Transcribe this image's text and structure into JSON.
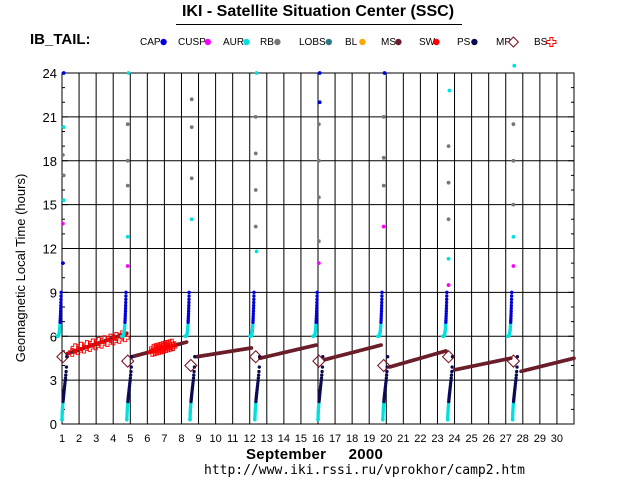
{
  "header": {
    "title": "IKI - Satellite Situation Center (SSC)",
    "dataset": "IB_TAIL:"
  },
  "footer": {
    "month": "September",
    "year": "2000",
    "url": "http://www.iki.rssi.ru/vprokhor/camp2.htm"
  },
  "colors": {
    "CAP": "#0000dd",
    "CUSP": "#ff00ff",
    "AUR": "#00e0e0",
    "RB": "#777777",
    "LOBS": "#2a7a8a",
    "BL": "#ffa500",
    "MS": "#6b1f2a",
    "SW": "#ff0000",
    "PS": "#0b0b55",
    "MP_BS": "#7a0a1a"
  },
  "chart_data": {
    "type": "scatter",
    "ylabel": "Geomagnetic  Local Time  (hours)",
    "xlabel": "September    2000",
    "ylim": [
      0,
      24
    ],
    "y_ticks": [
      0,
      3,
      6,
      9,
      12,
      15,
      18,
      21,
      24
    ],
    "xlim": [
      1,
      31
    ],
    "x_ticks": [
      1,
      2,
      3,
      4,
      5,
      6,
      7,
      8,
      9,
      10,
      11,
      12,
      13,
      14,
      15,
      16,
      17,
      18,
      19,
      20,
      21,
      22,
      23,
      24,
      25,
      26,
      27,
      28,
      29,
      30
    ],
    "grid": true,
    "legend_position": "top",
    "legend": [
      "CAP",
      "CUSP",
      "AUR",
      "RB",
      "LOBS",
      "BL",
      "MS",
      "SW",
      "PS",
      "MP",
      "BS"
    ],
    "orbit_starts": [
      1.0,
      4.8,
      8.5,
      12.3,
      16.0,
      19.8,
      23.6,
      27.4
    ],
    "magnetosheath_tracks": [
      {
        "x0": 1.3,
        "y0": 4.8,
        "x1": 4.8,
        "y1": 6.2
      },
      {
        "x0": 5.1,
        "y0": 4.6,
        "x1": 8.3,
        "y1": 5.6
      },
      {
        "x0": 8.9,
        "y0": 4.6,
        "x1": 12.1,
        "y1": 5.2
      },
      {
        "x0": 12.6,
        "y0": 4.5,
        "x1": 15.9,
        "y1": 5.4
      },
      {
        "x0": 16.4,
        "y0": 4.4,
        "x1": 19.7,
        "y1": 5.4
      },
      {
        "x0": 20.2,
        "y0": 3.9,
        "x1": 23.5,
        "y1": 5.0
      },
      {
        "x0": 24.0,
        "y0": 3.7,
        "x1": 27.3,
        "y1": 4.5
      },
      {
        "x0": 27.9,
        "y0": 3.6,
        "x1": 31.0,
        "y1": 4.5
      }
    ],
    "solar_wind_tracks": [
      {
        "x0": 1.6,
        "y0": 5.0,
        "x1": 4.7,
        "y1": 6.0
      },
      {
        "x0": 6.3,
        "y0": 5.0,
        "x1": 7.5,
        "y1": 5.4
      }
    ],
    "upper_scatter": [
      {
        "x": 1.1,
        "y": 24.0,
        "s": "CAP"
      },
      {
        "x": 1.1,
        "y": 20.3,
        "s": "AUR"
      },
      {
        "x": 1.05,
        "y": 18.4,
        "s": "RB"
      },
      {
        "x": 1.1,
        "y": 17.0,
        "s": "RB"
      },
      {
        "x": 1.1,
        "y": 15.3,
        "s": "AUR"
      },
      {
        "x": 1.05,
        "y": 13.7,
        "s": "CUSP"
      },
      {
        "x": 1.05,
        "y": 11.0,
        "s": "CAP"
      },
      {
        "x": 4.9,
        "y": 24.0,
        "s": "AUR"
      },
      {
        "x": 4.85,
        "y": 20.5,
        "s": "RB"
      },
      {
        "x": 4.85,
        "y": 18.0,
        "s": "RB"
      },
      {
        "x": 4.85,
        "y": 16.3,
        "s": "RB"
      },
      {
        "x": 4.85,
        "y": 12.8,
        "s": "AUR"
      },
      {
        "x": 4.85,
        "y": 10.8,
        "s": "CUSP"
      },
      {
        "x": 8.6,
        "y": 22.2,
        "s": "RB"
      },
      {
        "x": 8.6,
        "y": 20.3,
        "s": "RB"
      },
      {
        "x": 8.6,
        "y": 16.8,
        "s": "RB"
      },
      {
        "x": 8.6,
        "y": 14.0,
        "s": "AUR"
      },
      {
        "x": 12.4,
        "y": 24.0,
        "s": "AUR"
      },
      {
        "x": 12.35,
        "y": 21.0,
        "s": "RB"
      },
      {
        "x": 12.35,
        "y": 18.5,
        "s": "RB"
      },
      {
        "x": 12.35,
        "y": 16.0,
        "s": "RB"
      },
      {
        "x": 12.35,
        "y": 13.5,
        "s": "RB"
      },
      {
        "x": 12.4,
        "y": 11.8,
        "s": "AUR"
      },
      {
        "x": 16.1,
        "y": 24.0,
        "s": "CAP"
      },
      {
        "x": 16.1,
        "y": 22.0,
        "s": "CAP"
      },
      {
        "x": 16.05,
        "y": 20.5,
        "s": "RB"
      },
      {
        "x": 16.05,
        "y": 18.0,
        "s": "RB"
      },
      {
        "x": 16.05,
        "y": 15.5,
        "s": "RB"
      },
      {
        "x": 16.05,
        "y": 12.5,
        "s": "RB"
      },
      {
        "x": 16.05,
        "y": 11.0,
        "s": "CUSP"
      },
      {
        "x": 19.9,
        "y": 24.0,
        "s": "CAP"
      },
      {
        "x": 19.85,
        "y": 21.0,
        "s": "RB"
      },
      {
        "x": 19.85,
        "y": 18.2,
        "s": "RB"
      },
      {
        "x": 19.85,
        "y": 16.3,
        "s": "RB"
      },
      {
        "x": 19.85,
        "y": 13.5,
        "s": "CUSP"
      },
      {
        "x": 23.7,
        "y": 22.8,
        "s": "AUR"
      },
      {
        "x": 23.65,
        "y": 19.0,
        "s": "RB"
      },
      {
        "x": 23.65,
        "y": 16.5,
        "s": "RB"
      },
      {
        "x": 23.65,
        "y": 14.0,
        "s": "RB"
      },
      {
        "x": 23.65,
        "y": 11.3,
        "s": "AUR"
      },
      {
        "x": 23.65,
        "y": 9.5,
        "s": "CUSP"
      },
      {
        "x": 27.5,
        "y": 24.5,
        "s": "AUR"
      },
      {
        "x": 27.45,
        "y": 20.5,
        "s": "RB"
      },
      {
        "x": 27.45,
        "y": 18.0,
        "s": "RB"
      },
      {
        "x": 27.45,
        "y": 15.0,
        "s": "RB"
      },
      {
        "x": 27.45,
        "y": 12.8,
        "s": "AUR"
      },
      {
        "x": 27.45,
        "y": 10.8,
        "s": "CUSP"
      }
    ]
  }
}
